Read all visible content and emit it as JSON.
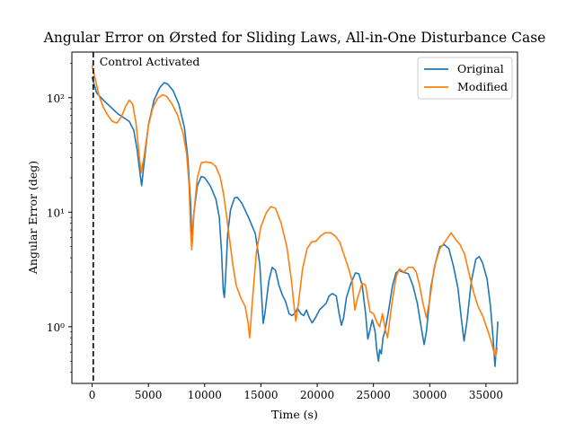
{
  "chart_data": {
    "type": "line",
    "title": "Angular Error on Ørsted for Sliding Laws, All-in-One Disturbance Case",
    "xlabel": "Time (s)",
    "ylabel": "Angular Error (deg)",
    "xlim": [
      -1800,
      37800
    ],
    "ylim": [
      0.32,
      250
    ],
    "yscale": "log",
    "x_ticks": [
      0,
      5000,
      10000,
      15000,
      20000,
      25000,
      30000,
      35000
    ],
    "x_tick_labels": [
      "0",
      "5000",
      "10000",
      "15000",
      "20000",
      "25000",
      "30000",
      "35000"
    ],
    "y_ticks": [
      1,
      10,
      100
    ],
    "y_tick_labels": [
      "10⁰",
      "10¹",
      "10²"
    ],
    "legend_position": "top-right",
    "annotation": {
      "text": "Control Activated",
      "x": 100
    },
    "series": [
      {
        "name": "Original",
        "color": "#1f77b4",
        "points": [
          [
            0,
            150
          ],
          [
            400,
            110
          ],
          [
            1000,
            95
          ],
          [
            1700,
            82
          ],
          [
            2300,
            72
          ],
          [
            2900,
            66
          ],
          [
            3300,
            62
          ],
          [
            3700,
            52
          ],
          [
            4000,
            35
          ],
          [
            4250,
            22
          ],
          [
            4400,
            17
          ],
          [
            4600,
            26
          ],
          [
            5000,
            58
          ],
          [
            5500,
            95
          ],
          [
            6000,
            122
          ],
          [
            6400,
            135
          ],
          [
            6700,
            132
          ],
          [
            7200,
            115
          ],
          [
            7700,
            88
          ],
          [
            8200,
            55
          ],
          [
            8500,
            30
          ],
          [
            8750,
            12
          ],
          [
            8880,
            5.2
          ],
          [
            9050,
            10
          ],
          [
            9350,
            17
          ],
          [
            9700,
            20.5
          ],
          [
            10000,
            20
          ],
          [
            10500,
            17
          ],
          [
            11000,
            13
          ],
          [
            11300,
            9
          ],
          [
            11500,
            4.5
          ],
          [
            11650,
            2.1
          ],
          [
            11750,
            1.8
          ],
          [
            11850,
            2.6
          ],
          [
            12050,
            6.5
          ],
          [
            12300,
            10.5
          ],
          [
            12650,
            13.3
          ],
          [
            12900,
            13.5
          ],
          [
            13300,
            12
          ],
          [
            13900,
            9
          ],
          [
            14500,
            6.5
          ],
          [
            14900,
            3.5
          ],
          [
            15100,
            1.6
          ],
          [
            15200,
            1.07
          ],
          [
            15350,
            1.3
          ],
          [
            15700,
            2.5
          ],
          [
            16000,
            3.3
          ],
          [
            16300,
            3.1
          ],
          [
            16600,
            2.3
          ],
          [
            16900,
            1.9
          ],
          [
            17200,
            1.65
          ],
          [
            17500,
            1.3
          ],
          [
            17750,
            1.25
          ],
          [
            18000,
            1.3
          ],
          [
            18250,
            1.45
          ],
          [
            18550,
            1.3
          ],
          [
            18800,
            1.25
          ],
          [
            19050,
            1.4
          ],
          [
            19300,
            1.2
          ],
          [
            19550,
            1.08
          ],
          [
            19850,
            1.2
          ],
          [
            20200,
            1.4
          ],
          [
            20500,
            1.5
          ],
          [
            20800,
            1.6
          ],
          [
            21050,
            1.85
          ],
          [
            21350,
            1.95
          ],
          [
            21700,
            1.85
          ],
          [
            21950,
            1.3
          ],
          [
            22150,
            1.03
          ],
          [
            22350,
            1.2
          ],
          [
            22600,
            1.8
          ],
          [
            23000,
            2.4
          ],
          [
            23400,
            2.95
          ],
          [
            23700,
            2.9
          ],
          [
            24000,
            2.3
          ],
          [
            24300,
            1.3
          ],
          [
            24500,
            0.78
          ],
          [
            24650,
            0.9
          ],
          [
            24900,
            1.15
          ],
          [
            25150,
            0.9
          ],
          [
            25300,
            0.62
          ],
          [
            25450,
            0.5
          ],
          [
            25550,
            0.63
          ],
          [
            25700,
            0.58
          ],
          [
            25850,
            0.8
          ],
          [
            26000,
            0.9
          ],
          [
            26300,
            1.3
          ],
          [
            26700,
            2.3
          ],
          [
            27000,
            2.95
          ],
          [
            27300,
            3.1
          ],
          [
            27600,
            3
          ],
          [
            28100,
            2.9
          ],
          [
            28500,
            2.3
          ],
          [
            28900,
            1.6
          ],
          [
            29200,
            1.05
          ],
          [
            29500,
            0.7
          ],
          [
            29700,
            0.9
          ],
          [
            30100,
            2.2
          ],
          [
            30500,
            3.6
          ],
          [
            30900,
            5
          ],
          [
            31300,
            5.2
          ],
          [
            31700,
            4.8
          ],
          [
            32100,
            3.4
          ],
          [
            32500,
            2.2
          ],
          [
            32800,
            1.2
          ],
          [
            33050,
            0.75
          ],
          [
            33300,
            1.1
          ],
          [
            33700,
            2.5
          ],
          [
            34100,
            3.9
          ],
          [
            34400,
            4.1
          ],
          [
            34700,
            3.6
          ],
          [
            35100,
            2.6
          ],
          [
            35400,
            1.5
          ],
          [
            35650,
            0.75
          ],
          [
            35800,
            0.45
          ],
          [
            35930,
            0.68
          ],
          [
            36050,
            1.1
          ]
        ]
      },
      {
        "name": "Modified",
        "color": "#ff7f0e",
        "points": [
          [
            0,
            190
          ],
          [
            250,
            150
          ],
          [
            600,
            105
          ],
          [
            1000,
            82
          ],
          [
            1400,
            70
          ],
          [
            1800,
            62
          ],
          [
            2200,
            60
          ],
          [
            2600,
            68
          ],
          [
            3000,
            85
          ],
          [
            3300,
            95
          ],
          [
            3600,
            88
          ],
          [
            3900,
            60
          ],
          [
            4200,
            30
          ],
          [
            4350,
            22
          ],
          [
            4600,
            30
          ],
          [
            5000,
            57
          ],
          [
            5400,
            82
          ],
          [
            5800,
            98
          ],
          [
            6250,
            106
          ],
          [
            6600,
            103
          ],
          [
            7100,
            88
          ],
          [
            7600,
            70
          ],
          [
            8100,
            48
          ],
          [
            8400,
            32
          ],
          [
            8600,
            18
          ],
          [
            8750,
            7
          ],
          [
            8850,
            4.7
          ],
          [
            9000,
            9
          ],
          [
            9350,
            20
          ],
          [
            9700,
            27
          ],
          [
            10100,
            27.5
          ],
          [
            10600,
            27
          ],
          [
            11000,
            25
          ],
          [
            11400,
            20
          ],
          [
            11700,
            14
          ],
          [
            11900,
            10
          ],
          [
            12100,
            7
          ],
          [
            12300,
            5
          ],
          [
            12500,
            3.5
          ],
          [
            12800,
            2.3
          ],
          [
            13200,
            1.8
          ],
          [
            13600,
            1.5
          ],
          [
            13850,
            1.1
          ],
          [
            14000,
            0.8
          ],
          [
            14200,
            1.5
          ],
          [
            14600,
            4.5
          ],
          [
            15000,
            7.5
          ],
          [
            15500,
            10
          ],
          [
            15900,
            11.2
          ],
          [
            16300,
            10.8
          ],
          [
            16800,
            8
          ],
          [
            17300,
            5
          ],
          [
            17700,
            2.6
          ],
          [
            17950,
            1.5
          ],
          [
            18100,
            1.12
          ],
          [
            18300,
            1.5
          ],
          [
            18700,
            3.2
          ],
          [
            19100,
            4.8
          ],
          [
            19500,
            5.5
          ],
          [
            19900,
            5.6
          ],
          [
            20300,
            6.2
          ],
          [
            20700,
            6.6
          ],
          [
            21200,
            6.6
          ],
          [
            21600,
            6.2
          ],
          [
            22000,
            5.5
          ],
          [
            22400,
            4.2
          ],
          [
            22800,
            3.2
          ],
          [
            23100,
            2.5
          ],
          [
            23350,
            1.4
          ],
          [
            23600,
            1.8
          ],
          [
            24000,
            2.4
          ],
          [
            24300,
            2.3
          ],
          [
            24700,
            1.35
          ],
          [
            25000,
            1.3
          ],
          [
            25300,
            1.1
          ],
          [
            25550,
            1
          ],
          [
            25800,
            1.3
          ],
          [
            26050,
            0.95
          ],
          [
            26250,
            0.8
          ],
          [
            26600,
            1.5
          ],
          [
            27000,
            2.7
          ],
          [
            27300,
            3.2
          ],
          [
            27700,
            3
          ],
          [
            28100,
            3.3
          ],
          [
            28500,
            3.3
          ],
          [
            28800,
            3
          ],
          [
            29100,
            2.3
          ],
          [
            29400,
            1.6
          ],
          [
            29700,
            1.2
          ],
          [
            30000,
            1.7
          ],
          [
            30400,
            3.3
          ],
          [
            30900,
            4.8
          ],
          [
            31400,
            5.6
          ],
          [
            31900,
            6.6
          ],
          [
            32300,
            5.8
          ],
          [
            32700,
            5.2
          ],
          [
            33100,
            4.3
          ],
          [
            33500,
            2.9
          ],
          [
            33900,
            2
          ],
          [
            34300,
            1.5
          ],
          [
            34700,
            1.25
          ],
          [
            35200,
            0.9
          ],
          [
            35500,
            0.72
          ],
          [
            35700,
            0.6
          ],
          [
            35850,
            0.55
          ],
          [
            36000,
            0.65
          ]
        ]
      }
    ]
  }
}
